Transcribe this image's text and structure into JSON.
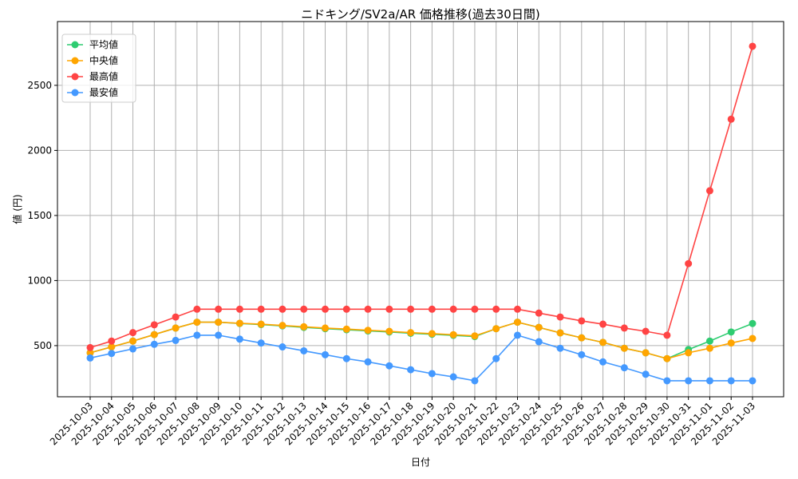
{
  "chart_data": {
    "type": "line",
    "title": "ニドキング/SV2a/AR 価格推移(過去30日間)",
    "xlabel": "日付",
    "ylabel": "値 (円)",
    "ylim": [
      107,
      2990
    ],
    "yticks": [
      500,
      1000,
      1500,
      2000,
      2500
    ],
    "grid": true,
    "legend_position": "top-left",
    "categories": [
      "2025-10-03",
      "2025-10-04",
      "2025-10-05",
      "2025-10-06",
      "2025-10-07",
      "2025-10-08",
      "2025-10-09",
      "2025-10-10",
      "2025-10-11",
      "2025-10-12",
      "2025-10-13",
      "2025-10-14",
      "2025-10-15",
      "2025-10-16",
      "2025-10-17",
      "2025-10-18",
      "2025-10-19",
      "2025-10-20",
      "2025-10-21",
      "2025-10-22",
      "2025-10-23",
      "2025-10-24",
      "2025-10-25",
      "2025-10-26",
      "2025-10-27",
      "2025-10-28",
      "2025-10-29",
      "2025-10-30",
      "2025-10-31",
      "2025-11-01",
      "2025-11-02",
      "2025-11-03"
    ],
    "series": [
      {
        "name": "平均値",
        "color": "#2ecc71",
        "values": [
          445,
          490,
          535,
          585,
          635,
          680,
          680,
          670,
          662,
          652,
          640,
          630,
          622,
          613,
          605,
          595,
          587,
          579,
          570,
          630,
          680,
          640,
          598,
          560,
          525,
          480,
          445,
          400,
          470,
          535,
          605,
          670
        ]
      },
      {
        "name": "中央値",
        "color": "#ffa500",
        "values": [
          445,
          490,
          535,
          585,
          635,
          680,
          680,
          672,
          665,
          655,
          645,
          635,
          627,
          618,
          610,
          600,
          592,
          584,
          575,
          630,
          680,
          640,
          598,
          560,
          525,
          480,
          445,
          400,
          445,
          480,
          520,
          555
        ]
      },
      {
        "name": "最高値",
        "color": "#ff4444",
        "values": [
          485,
          535,
          600,
          660,
          720,
          780,
          780,
          780,
          780,
          780,
          780,
          780,
          780,
          780,
          780,
          780,
          780,
          780,
          780,
          780,
          780,
          750,
          720,
          690,
          665,
          635,
          610,
          580,
          1130,
          1690,
          2240,
          2800
        ]
      },
      {
        "name": "最安値",
        "color": "#4499ff",
        "values": [
          405,
          440,
          475,
          510,
          540,
          580,
          580,
          550,
          520,
          490,
          460,
          430,
          400,
          375,
          345,
          315,
          285,
          260,
          230,
          400,
          580,
          530,
          480,
          430,
          375,
          330,
          280,
          230,
          230,
          230,
          230,
          230
        ]
      }
    ]
  }
}
